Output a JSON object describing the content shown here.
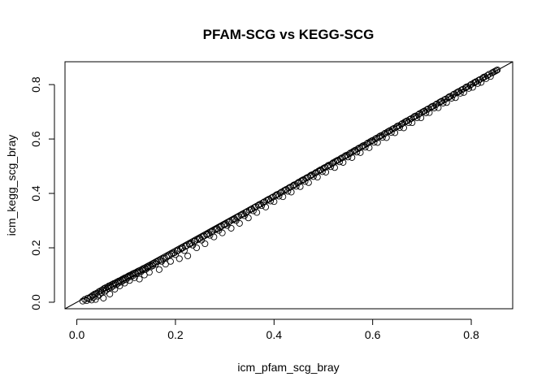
{
  "chart_data": {
    "type": "scatter",
    "title": "PFAM-SCG vs KEGG-SCG",
    "xlabel": "icm_pfam_scg_bray",
    "ylabel": "icm_kegg_scg_bray",
    "xlim": [
      -0.024,
      0.884
    ],
    "ylim": [
      -0.024,
      0.884
    ],
    "x_ticks": [
      0.0,
      0.2,
      0.4,
      0.6,
      0.8
    ],
    "y_ticks": [
      0.0,
      0.2,
      0.4,
      0.6,
      0.8
    ],
    "x_tick_labels": [
      "0.0",
      "0.2",
      "0.4",
      "0.6",
      "0.8"
    ],
    "y_tick_labels": [
      "0.0",
      "0.2",
      "0.4",
      "0.6",
      "0.8"
    ],
    "marker": "open-circle",
    "grid": false,
    "reference_line": {
      "intercept": 0,
      "slope": 1
    },
    "points": [
      [
        0.012,
        0.004
      ],
      [
        0.016,
        0.01
      ],
      [
        0.02,
        0.006
      ],
      [
        0.022,
        0.015
      ],
      [
        0.025,
        0.012
      ],
      [
        0.028,
        0.02
      ],
      [
        0.03,
        0.008
      ],
      [
        0.032,
        0.025
      ],
      [
        0.034,
        0.018
      ],
      [
        0.036,
        0.03
      ],
      [
        0.038,
        0.01
      ],
      [
        0.04,
        0.033
      ],
      [
        0.042,
        0.022
      ],
      [
        0.044,
        0.038
      ],
      [
        0.046,
        0.028
      ],
      [
        0.048,
        0.042
      ],
      [
        0.05,
        0.035
      ],
      [
        0.052,
        0.046
      ],
      [
        0.054,
        0.015
      ],
      [
        0.055,
        0.05
      ],
      [
        0.057,
        0.04
      ],
      [
        0.058,
        0.053
      ],
      [
        0.06,
        0.045
      ],
      [
        0.062,
        0.056
      ],
      [
        0.064,
        0.05
      ],
      [
        0.065,
        0.06
      ],
      [
        0.067,
        0.03
      ],
      [
        0.068,
        0.062
      ],
      [
        0.07,
        0.055
      ],
      [
        0.072,
        0.066
      ],
      [
        0.074,
        0.06
      ],
      [
        0.075,
        0.069
      ],
      [
        0.077,
        0.048
      ],
      [
        0.078,
        0.071
      ],
      [
        0.08,
        0.064
      ],
      [
        0.082,
        0.075
      ],
      [
        0.084,
        0.07
      ],
      [
        0.085,
        0.078
      ],
      [
        0.087,
        0.06
      ],
      [
        0.088,
        0.08
      ],
      [
        0.09,
        0.074
      ],
      [
        0.092,
        0.084
      ],
      [
        0.094,
        0.08
      ],
      [
        0.095,
        0.087
      ],
      [
        0.097,
        0.07
      ],
      [
        0.098,
        0.09
      ],
      [
        0.1,
        0.083
      ],
      [
        0.102,
        0.093
      ],
      [
        0.104,
        0.09
      ],
      [
        0.105,
        0.097
      ],
      [
        0.107,
        0.08
      ],
      [
        0.108,
        0.099
      ],
      [
        0.11,
        0.094
      ],
      [
        0.112,
        0.103
      ],
      [
        0.114,
        0.098
      ],
      [
        0.115,
        0.106
      ],
      [
        0.117,
        0.09
      ],
      [
        0.118,
        0.108
      ],
      [
        0.12,
        0.104
      ],
      [
        0.122,
        0.112
      ],
      [
        0.124,
        0.108
      ],
      [
        0.125,
        0.115
      ],
      [
        0.127,
        0.085
      ],
      [
        0.128,
        0.117
      ],
      [
        0.13,
        0.112
      ],
      [
        0.132,
        0.121
      ],
      [
        0.134,
        0.118
      ],
      [
        0.135,
        0.124
      ],
      [
        0.137,
        0.1
      ],
      [
        0.138,
        0.126
      ],
      [
        0.14,
        0.121
      ],
      [
        0.142,
        0.13
      ],
      [
        0.144,
        0.127
      ],
      [
        0.145,
        0.133
      ],
      [
        0.147,
        0.11
      ],
      [
        0.148,
        0.135
      ],
      [
        0.15,
        0.13
      ],
      [
        0.152,
        0.139
      ],
      [
        0.154,
        0.134
      ],
      [
        0.155,
        0.142
      ],
      [
        0.158,
        0.145
      ],
      [
        0.16,
        0.14
      ],
      [
        0.162,
        0.148
      ],
      [
        0.165,
        0.151
      ],
      [
        0.167,
        0.12
      ],
      [
        0.17,
        0.155
      ],
      [
        0.172,
        0.15
      ],
      [
        0.175,
        0.16
      ],
      [
        0.178,
        0.162
      ],
      [
        0.18,
        0.14
      ],
      [
        0.182,
        0.166
      ],
      [
        0.185,
        0.17
      ],
      [
        0.188,
        0.172
      ],
      [
        0.19,
        0.15
      ],
      [
        0.192,
        0.177
      ],
      [
        0.195,
        0.18
      ],
      [
        0.198,
        0.182
      ],
      [
        0.2,
        0.175
      ],
      [
        0.203,
        0.188
      ],
      [
        0.205,
        0.19
      ],
      [
        0.208,
        0.16
      ],
      [
        0.21,
        0.195
      ],
      [
        0.213,
        0.198
      ],
      [
        0.215,
        0.2
      ],
      [
        0.218,
        0.19
      ],
      [
        0.22,
        0.205
      ],
      [
        0.223,
        0.208
      ],
      [
        0.225,
        0.17
      ],
      [
        0.228,
        0.213
      ],
      [
        0.23,
        0.215
      ],
      [
        0.233,
        0.218
      ],
      [
        0.235,
        0.21
      ],
      [
        0.238,
        0.223
      ],
      [
        0.24,
        0.225
      ],
      [
        0.243,
        0.2
      ],
      [
        0.245,
        0.23
      ],
      [
        0.248,
        0.233
      ],
      [
        0.25,
        0.235
      ],
      [
        0.253,
        0.228
      ],
      [
        0.255,
        0.24
      ],
      [
        0.258,
        0.243
      ],
      [
        0.26,
        0.215
      ],
      [
        0.263,
        0.248
      ],
      [
        0.265,
        0.25
      ],
      [
        0.268,
        0.253
      ],
      [
        0.27,
        0.246
      ],
      [
        0.273,
        0.258
      ],
      [
        0.275,
        0.261
      ],
      [
        0.278,
        0.24
      ],
      [
        0.28,
        0.266
      ],
      [
        0.283,
        0.268
      ],
      [
        0.285,
        0.271
      ],
      [
        0.288,
        0.264
      ],
      [
        0.29,
        0.276
      ],
      [
        0.293,
        0.279
      ],
      [
        0.295,
        0.255
      ],
      [
        0.298,
        0.284
      ],
      [
        0.3,
        0.286
      ],
      [
        0.303,
        0.289
      ],
      [
        0.305,
        0.282
      ],
      [
        0.308,
        0.294
      ],
      [
        0.31,
        0.297
      ],
      [
        0.313,
        0.272
      ],
      [
        0.315,
        0.302
      ],
      [
        0.318,
        0.304
      ],
      [
        0.32,
        0.307
      ],
      [
        0.323,
        0.3
      ],
      [
        0.325,
        0.312
      ],
      [
        0.328,
        0.315
      ],
      [
        0.33,
        0.29
      ],
      [
        0.333,
        0.32
      ],
      [
        0.335,
        0.323
      ],
      [
        0.338,
        0.325
      ],
      [
        0.34,
        0.318
      ],
      [
        0.343,
        0.33
      ],
      [
        0.345,
        0.333
      ],
      [
        0.348,
        0.31
      ],
      [
        0.35,
        0.338
      ],
      [
        0.353,
        0.341
      ],
      [
        0.355,
        0.343
      ],
      [
        0.358,
        0.336
      ],
      [
        0.36,
        0.348
      ],
      [
        0.363,
        0.351
      ],
      [
        0.365,
        0.33
      ],
      [
        0.368,
        0.356
      ],
      [
        0.37,
        0.359
      ],
      [
        0.373,
        0.361
      ],
      [
        0.375,
        0.355
      ],
      [
        0.378,
        0.366
      ],
      [
        0.38,
        0.369
      ],
      [
        0.383,
        0.35
      ],
      [
        0.385,
        0.374
      ],
      [
        0.388,
        0.377
      ],
      [
        0.39,
        0.379
      ],
      [
        0.393,
        0.372
      ],
      [
        0.395,
        0.384
      ],
      [
        0.398,
        0.387
      ],
      [
        0.4,
        0.37
      ],
      [
        0.403,
        0.392
      ],
      [
        0.405,
        0.395
      ],
      [
        0.408,
        0.397
      ],
      [
        0.41,
        0.39
      ],
      [
        0.413,
        0.402
      ],
      [
        0.415,
        0.405
      ],
      [
        0.418,
        0.388
      ],
      [
        0.42,
        0.41
      ],
      [
        0.423,
        0.413
      ],
      [
        0.425,
        0.415
      ],
      [
        0.428,
        0.408
      ],
      [
        0.43,
        0.42
      ],
      [
        0.433,
        0.423
      ],
      [
        0.435,
        0.405
      ],
      [
        0.438,
        0.428
      ],
      [
        0.44,
        0.431
      ],
      [
        0.443,
        0.433
      ],
      [
        0.445,
        0.426
      ],
      [
        0.448,
        0.438
      ],
      [
        0.45,
        0.441
      ],
      [
        0.453,
        0.425
      ],
      [
        0.455,
        0.446
      ],
      [
        0.458,
        0.449
      ],
      [
        0.46,
        0.451
      ],
      [
        0.463,
        0.444
      ],
      [
        0.465,
        0.456
      ],
      [
        0.468,
        0.459
      ],
      [
        0.47,
        0.44
      ],
      [
        0.473,
        0.464
      ],
      [
        0.475,
        0.467
      ],
      [
        0.478,
        0.469
      ],
      [
        0.48,
        0.462
      ],
      [
        0.483,
        0.474
      ],
      [
        0.485,
        0.477
      ],
      [
        0.488,
        0.46
      ],
      [
        0.49,
        0.482
      ],
      [
        0.493,
        0.485
      ],
      [
        0.495,
        0.487
      ],
      [
        0.498,
        0.48
      ],
      [
        0.5,
        0.492
      ],
      [
        0.503,
        0.495
      ],
      [
        0.505,
        0.478
      ],
      [
        0.508,
        0.5
      ],
      [
        0.51,
        0.503
      ],
      [
        0.513,
        0.505
      ],
      [
        0.515,
        0.498
      ],
      [
        0.518,
        0.51
      ],
      [
        0.52,
        0.513
      ],
      [
        0.523,
        0.495
      ],
      [
        0.525,
        0.518
      ],
      [
        0.528,
        0.521
      ],
      [
        0.53,
        0.523
      ],
      [
        0.533,
        0.516
      ],
      [
        0.535,
        0.528
      ],
      [
        0.538,
        0.531
      ],
      [
        0.54,
        0.514
      ],
      [
        0.543,
        0.536
      ],
      [
        0.545,
        0.539
      ],
      [
        0.548,
        0.541
      ],
      [
        0.55,
        0.534
      ],
      [
        0.553,
        0.546
      ],
      [
        0.555,
        0.549
      ],
      [
        0.558,
        0.532
      ],
      [
        0.56,
        0.554
      ],
      [
        0.563,
        0.557
      ],
      [
        0.565,
        0.559
      ],
      [
        0.568,
        0.552
      ],
      [
        0.57,
        0.564
      ],
      [
        0.573,
        0.567
      ],
      [
        0.575,
        0.55
      ],
      [
        0.578,
        0.572
      ],
      [
        0.58,
        0.575
      ],
      [
        0.583,
        0.577
      ],
      [
        0.585,
        0.57
      ],
      [
        0.588,
        0.582
      ],
      [
        0.59,
        0.585
      ],
      [
        0.593,
        0.568
      ],
      [
        0.595,
        0.59
      ],
      [
        0.598,
        0.593
      ],
      [
        0.6,
        0.595
      ],
      [
        0.603,
        0.588
      ],
      [
        0.605,
        0.6
      ],
      [
        0.608,
        0.603
      ],
      [
        0.61,
        0.587
      ],
      [
        0.613,
        0.608
      ],
      [
        0.615,
        0.611
      ],
      [
        0.618,
        0.613
      ],
      [
        0.62,
        0.606
      ],
      [
        0.623,
        0.618
      ],
      [
        0.625,
        0.621
      ],
      [
        0.628,
        0.605
      ],
      [
        0.63,
        0.626
      ],
      [
        0.633,
        0.629
      ],
      [
        0.635,
        0.631
      ],
      [
        0.638,
        0.624
      ],
      [
        0.64,
        0.636
      ],
      [
        0.643,
        0.639
      ],
      [
        0.645,
        0.623
      ],
      [
        0.648,
        0.644
      ],
      [
        0.65,
        0.647
      ],
      [
        0.653,
        0.649
      ],
      [
        0.655,
        0.642
      ],
      [
        0.658,
        0.654
      ],
      [
        0.66,
        0.657
      ],
      [
        0.663,
        0.641
      ],
      [
        0.665,
        0.662
      ],
      [
        0.668,
        0.665
      ],
      [
        0.67,
        0.667
      ],
      [
        0.673,
        0.66
      ],
      [
        0.675,
        0.672
      ],
      [
        0.678,
        0.675
      ],
      [
        0.68,
        0.66
      ],
      [
        0.683,
        0.68
      ],
      [
        0.685,
        0.683
      ],
      [
        0.688,
        0.685
      ],
      [
        0.69,
        0.678
      ],
      [
        0.693,
        0.69
      ],
      [
        0.695,
        0.693
      ],
      [
        0.698,
        0.678
      ],
      [
        0.7,
        0.698
      ],
      [
        0.703,
        0.701
      ],
      [
        0.705,
        0.703
      ],
      [
        0.708,
        0.696
      ],
      [
        0.71,
        0.708
      ],
      [
        0.713,
        0.711
      ],
      [
        0.715,
        0.697
      ],
      [
        0.718,
        0.716
      ],
      [
        0.72,
        0.719
      ],
      [
        0.723,
        0.721
      ],
      [
        0.725,
        0.714
      ],
      [
        0.728,
        0.726
      ],
      [
        0.73,
        0.729
      ],
      [
        0.733,
        0.715
      ],
      [
        0.735,
        0.734
      ],
      [
        0.738,
        0.737
      ],
      [
        0.74,
        0.739
      ],
      [
        0.743,
        0.732
      ],
      [
        0.745,
        0.744
      ],
      [
        0.748,
        0.747
      ],
      [
        0.75,
        0.734
      ],
      [
        0.753,
        0.752
      ],
      [
        0.755,
        0.755
      ],
      [
        0.758,
        0.757
      ],
      [
        0.76,
        0.75
      ],
      [
        0.763,
        0.762
      ],
      [
        0.765,
        0.765
      ],
      [
        0.768,
        0.752
      ],
      [
        0.77,
        0.77
      ],
      [
        0.773,
        0.773
      ],
      [
        0.775,
        0.775
      ],
      [
        0.778,
        0.768
      ],
      [
        0.78,
        0.78
      ],
      [
        0.783,
        0.783
      ],
      [
        0.785,
        0.771
      ],
      [
        0.788,
        0.788
      ],
      [
        0.79,
        0.791
      ],
      [
        0.793,
        0.793
      ],
      [
        0.795,
        0.786
      ],
      [
        0.798,
        0.798
      ],
      [
        0.8,
        0.801
      ],
      [
        0.803,
        0.79
      ],
      [
        0.805,
        0.806
      ],
      [
        0.808,
        0.809
      ],
      [
        0.81,
        0.811
      ],
      [
        0.813,
        0.804
      ],
      [
        0.815,
        0.816
      ],
      [
        0.818,
        0.819
      ],
      [
        0.82,
        0.808
      ],
      [
        0.823,
        0.824
      ],
      [
        0.825,
        0.827
      ],
      [
        0.828,
        0.829
      ],
      [
        0.83,
        0.822
      ],
      [
        0.833,
        0.834
      ],
      [
        0.836,
        0.838
      ],
      [
        0.839,
        0.83
      ],
      [
        0.842,
        0.843
      ],
      [
        0.845,
        0.846
      ],
      [
        0.848,
        0.849
      ],
      [
        0.851,
        0.852
      ],
      [
        0.853,
        0.854
      ]
    ]
  }
}
